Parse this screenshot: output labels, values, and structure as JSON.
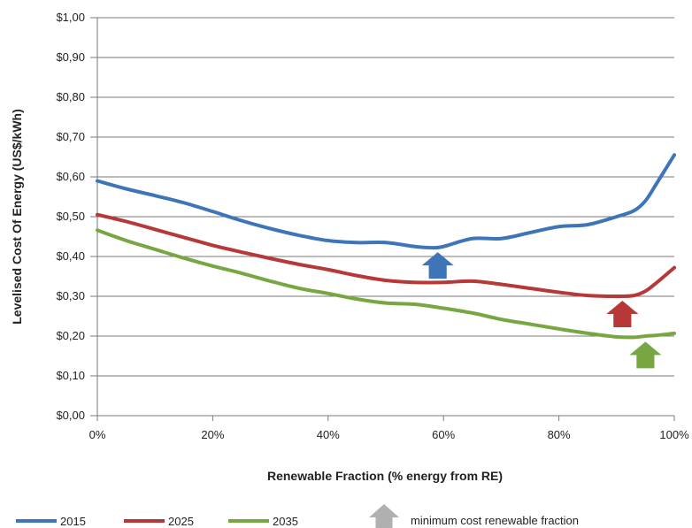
{
  "chart_data": {
    "type": "line",
    "xlabel": "Renewable Fraction (% energy from RE)",
    "ylabel": "Levelised Cost Of Energy (US$/kWh)",
    "xlim": [
      0,
      100
    ],
    "ylim": [
      0,
      1.0
    ],
    "x_ticks": [
      {
        "value": 0,
        "label": "0%"
      },
      {
        "value": 20,
        "label": "20%"
      },
      {
        "value": 40,
        "label": "40%"
      },
      {
        "value": 60,
        "label": "60%"
      },
      {
        "value": 80,
        "label": "80%"
      },
      {
        "value": 100,
        "label": "100%"
      }
    ],
    "y_ticks": [
      {
        "value": 0.0,
        "label": "$0,00"
      },
      {
        "value": 0.1,
        "label": "$0,10"
      },
      {
        "value": 0.2,
        "label": "$0,20"
      },
      {
        "value": 0.3,
        "label": "$0,30"
      },
      {
        "value": 0.4,
        "label": "$0,40"
      },
      {
        "value": 0.5,
        "label": "$0,50"
      },
      {
        "value": 0.6,
        "label": "$0,60"
      },
      {
        "value": 0.7,
        "label": "$0,70"
      },
      {
        "value": 0.8,
        "label": "$0,80"
      },
      {
        "value": 0.9,
        "label": "$0,90"
      },
      {
        "value": 1.0,
        "label": "$1,00"
      }
    ],
    "grid": "horizontal",
    "legend_position": "bottom",
    "series": [
      {
        "name": "2015",
        "color": "#3d75b8",
        "x": [
          0,
          5,
          10,
          15,
          20,
          25,
          30,
          35,
          40,
          45,
          50,
          55,
          58,
          60,
          65,
          70,
          75,
          80,
          85,
          90,
          93,
          95,
          97,
          100
        ],
        "y": [
          0.59,
          0.57,
          0.553,
          0.535,
          0.513,
          0.49,
          0.47,
          0.453,
          0.44,
          0.435,
          0.435,
          0.425,
          0.422,
          0.425,
          0.445,
          0.445,
          0.46,
          0.475,
          0.48,
          0.5,
          0.515,
          0.54,
          0.585,
          0.655
        ]
      },
      {
        "name": "2025",
        "color": "#b63838",
        "x": [
          0,
          5,
          10,
          15,
          20,
          25,
          30,
          35,
          40,
          45,
          50,
          55,
          60,
          65,
          70,
          75,
          80,
          85,
          90,
          93,
          95,
          97,
          100
        ],
        "y": [
          0.505,
          0.488,
          0.468,
          0.448,
          0.428,
          0.411,
          0.395,
          0.38,
          0.367,
          0.352,
          0.34,
          0.335,
          0.335,
          0.338,
          0.33,
          0.32,
          0.31,
          0.302,
          0.3,
          0.302,
          0.313,
          0.335,
          0.372
        ]
      },
      {
        "name": "2035",
        "color": "#77a642",
        "x": [
          0,
          5,
          10,
          15,
          20,
          25,
          30,
          35,
          40,
          45,
          50,
          55,
          60,
          65,
          70,
          75,
          80,
          85,
          90,
          93,
          95,
          97,
          100
        ],
        "y": [
          0.466,
          0.44,
          0.418,
          0.396,
          0.376,
          0.358,
          0.338,
          0.32,
          0.307,
          0.293,
          0.283,
          0.28,
          0.27,
          0.258,
          0.242,
          0.23,
          0.218,
          0.207,
          0.198,
          0.197,
          0.2,
          0.202,
          0.207
        ]
      }
    ],
    "annotations": [
      {
        "series": "2015",
        "x": 59,
        "y": 0.422,
        "marker": "up-arrow",
        "color": "#3d75b8"
      },
      {
        "series": "2025",
        "x": 91,
        "y": 0.3,
        "marker": "up-arrow",
        "color": "#b63838"
      },
      {
        "series": "2035",
        "x": 95,
        "y": 0.197,
        "marker": "up-arrow",
        "color": "#77a642"
      }
    ],
    "legend": {
      "items": [
        {
          "label": "2015",
          "color": "#3d75b8"
        },
        {
          "label": "2025",
          "color": "#b63838"
        },
        {
          "label": "2035",
          "color": "#77a642"
        }
      ],
      "arrow_label": "minimum cost renewable fraction",
      "arrow_color": "#b0b0b0"
    }
  }
}
